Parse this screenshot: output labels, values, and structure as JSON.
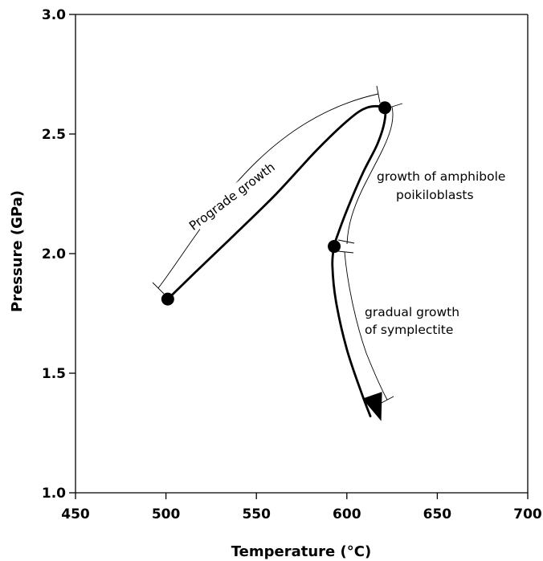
{
  "chart_data": {
    "type": "line",
    "xlabel": "Temperature (°C)",
    "ylabel": "Pressure (GPa)",
    "xlim": [
      450,
      700
    ],
    "ylim": [
      1.0,
      3.0
    ],
    "x_ticks": [
      450,
      500,
      550,
      600,
      650,
      700
    ],
    "y_ticks": [
      1.0,
      1.5,
      2.0,
      2.5,
      3.0
    ],
    "x_tick_labels": [
      "450",
      "500",
      "550",
      "600",
      "650",
      "700"
    ],
    "y_tick_labels": [
      "1.0",
      "1.5",
      "2.0",
      "2.5",
      "3.0"
    ],
    "grid": false,
    "series": [
      {
        "points": [
          {
            "x": 501,
            "y": 1.81
          },
          {
            "x": 516,
            "y": 1.92
          },
          {
            "x": 538,
            "y": 2.08
          },
          {
            "x": 561,
            "y": 2.25
          },
          {
            "x": 583,
            "y": 2.43
          },
          {
            "x": 601,
            "y": 2.56
          },
          {
            "x": 611,
            "y": 2.61
          },
          {
            "x": 620,
            "y": 2.61
          },
          {
            "x": 621,
            "y": 2.56
          },
          {
            "x": 617,
            "y": 2.46
          },
          {
            "x": 609,
            "y": 2.34
          },
          {
            "x": 601,
            "y": 2.2
          },
          {
            "x": 595,
            "y": 2.08
          },
          {
            "x": 593,
            "y": 2.03
          },
          {
            "x": 592,
            "y": 1.95
          },
          {
            "x": 594,
            "y": 1.8
          },
          {
            "x": 600,
            "y": 1.6
          },
          {
            "x": 608,
            "y": 1.42
          },
          {
            "x": 613,
            "y": 1.32
          }
        ]
      }
    ],
    "markers": [
      {
        "x": 501,
        "y": 1.81
      },
      {
        "x": 621,
        "y": 2.61
      },
      {
        "x": 593,
        "y": 2.03
      }
    ],
    "arrow_tip": {
      "x": 619,
      "y": 1.3
    },
    "annotations": [
      {
        "text": "Prograde growth"
      },
      {
        "text": "growth of amphibole"
      },
      {
        "text": "poikiloblasts"
      },
      {
        "text": "gradual growth"
      },
      {
        "text": "of symplectite"
      }
    ]
  }
}
